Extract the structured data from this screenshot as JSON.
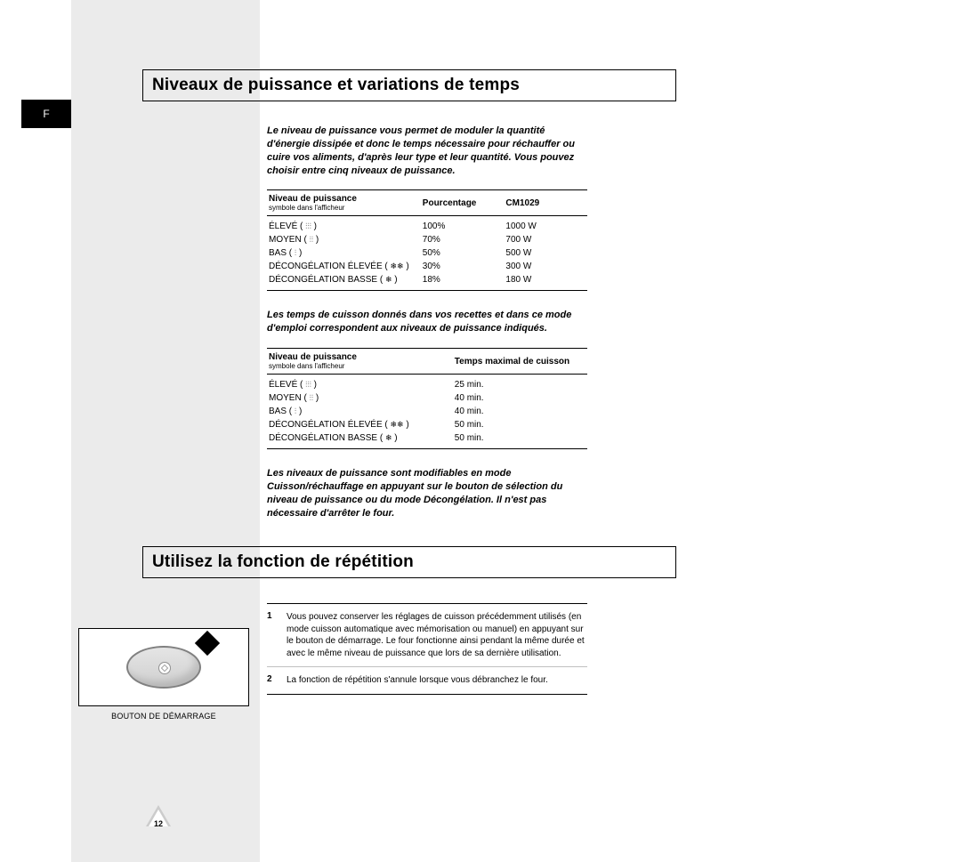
{
  "tab": "F",
  "page_number": "12",
  "heading1": "Niveaux de puissance et variations de temps",
  "intro": "Le niveau de puissance vous permet de moduler la quantité d'énergie dissipée et donc le temps nécessaire pour réchauffer ou cuire vos aliments, d'après leur type et leur quantité. Vous pouvez choisir entre cinq niveaux de puissance.",
  "table1": {
    "headers": {
      "c1": "Niveau de puissance",
      "c1sub": "symbole dans l'afficheur",
      "c2": "Pourcentage",
      "c3": "CM1029"
    },
    "rows": [
      {
        "label": "ÉLEVÉ",
        "sym": "⫶⫶⫶",
        "pct": "100%",
        "w": "1000 W"
      },
      {
        "label": "MOYEN",
        "sym": "⫶⫶",
        "pct": "70%",
        "w": "700 W"
      },
      {
        "label": "BAS",
        "sym": "⫶",
        "pct": "50%",
        "w": "500 W"
      },
      {
        "label": "DÉCONGÉLATION ÉLEVÉE",
        "sym": "❄❄",
        "pct": "30%",
        "w": "300 W"
      },
      {
        "label": "DÉCONGÉLATION BASSE",
        "sym": "❄",
        "pct": "18%",
        "w": "180 W"
      }
    ]
  },
  "para_mid": "Les temps de cuisson donnés dans vos recettes et dans ce mode d'emploi correspondent aux niveaux de puissance indiqués.",
  "table2": {
    "headers": {
      "c1": "Niveau de puissance",
      "c1sub": "symbole dans l'afficheur",
      "c2": "Temps maximal de cuisson"
    },
    "rows": [
      {
        "label": "ÉLEVÉ",
        "sym": "⫶⫶⫶",
        "t": "25 min."
      },
      {
        "label": "MOYEN",
        "sym": "⫶⫶",
        "t": "40 min."
      },
      {
        "label": "BAS",
        "sym": "⫶",
        "t": "40 min."
      },
      {
        "label": "DÉCONGÉLATION ÉLEVÉE",
        "sym": "❄❄",
        "t": "50 min."
      },
      {
        "label": "DÉCONGÉLATION BASSE",
        "sym": "❄",
        "t": "50 min."
      }
    ]
  },
  "para_note": "Les niveaux de puissance sont modifiables en mode Cuisson/réchauffage en appuyant sur le bouton de sélection du niveau de puissance ou du mode Décongélation. Il n'est pas nécessaire d'arrêter le four.",
  "heading2": "Utilisez la fonction de répétition",
  "illustration_caption": "BOUTON DE DÉMARRAGE",
  "steps": [
    {
      "n": "1",
      "t": "Vous pouvez conserver les réglages de cuisson précédemment utilisés (en mode cuisson automatique avec mémorisation ou manuel) en appuyant sur le bouton de démarrage. Le four fonctionne ainsi pendant la même durée et avec le même niveau de puissance que lors de sa dernière utilisation."
    },
    {
      "n": "2",
      "t": "La fonction de répétition s'annule lorsque vous débranchez le four."
    }
  ]
}
